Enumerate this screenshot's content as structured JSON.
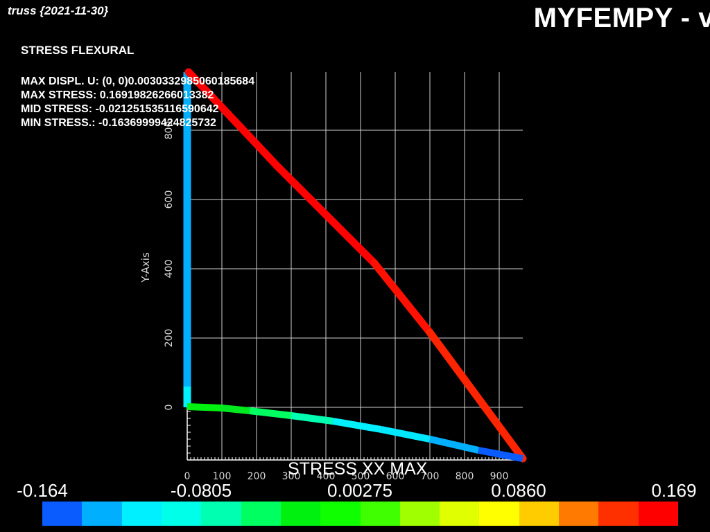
{
  "app_title": "truss {2021-11-30}",
  "brand_title": "MYFEMPY - v",
  "view_title": "STRESS FLEXURAL",
  "info": {
    "max_displ": "MAX DISPL. U:   (0, 0)0.003033298506018568​4",
    "max_stress": "MAX STRESS: 0.16919826266013382",
    "mid_stress": "MID STRESS: -0.021251535116590642",
    "min_stress": "MIN STRESS.: -0.16369999424825732"
  },
  "axes": {
    "y_label": "Y-Axis",
    "y_ticks": [
      "0",
      "200",
      "400",
      "600",
      "800"
    ],
    "x_ticks": [
      "0",
      "100",
      "200",
      "300",
      "400",
      "500",
      "600",
      "700",
      "800",
      "900"
    ]
  },
  "colorbar": {
    "title": "STRESS XX MAX",
    "labels": [
      "-0.164",
      "-0.0805",
      "0.00275",
      "0.0860",
      "0.169"
    ],
    "colors": [
      "#0a5cff",
      "#00b0ff",
      "#00f0ff",
      "#00ffe8",
      "#00ffb0",
      "#00ff60",
      "#00f010",
      "#10ff00",
      "#40ff00",
      "#a0ff00",
      "#e0ff00",
      "#ffff00",
      "#ffcc00",
      "#ff7a00",
      "#ff3000",
      "#ff0000"
    ]
  }
}
